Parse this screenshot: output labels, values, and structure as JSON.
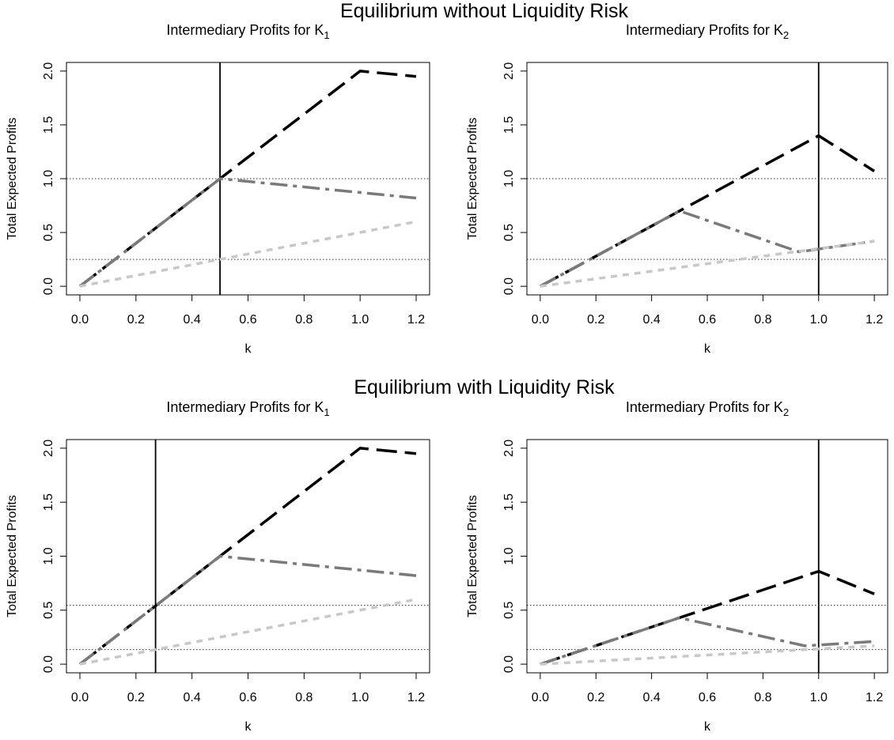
{
  "sections": [
    {
      "title": "Equilibrium without Liquidity Risk"
    },
    {
      "title": "Equilibrium with Liquidity Risk"
    }
  ],
  "series_styles": [
    {
      "color": "#000000",
      "dash": "long-dash",
      "width": 3.5
    },
    {
      "color": "#7a7a7a",
      "dash": "dash-dot",
      "width": 3.5
    },
    {
      "color": "#c8c8c8",
      "dash": "short-dash",
      "width": 3.5
    }
  ],
  "chart_data": [
    {
      "type": "line",
      "title": "Intermediary Profits for K",
      "title_subscript": "1",
      "xlabel": "k",
      "ylabel": "Total Expected Profits",
      "xlim": [
        0,
        1.2
      ],
      "ylim": [
        0,
        2.0
      ],
      "xticks": [
        "0.0",
        "0.2",
        "0.4",
        "0.6",
        "0.8",
        "1.0",
        "1.2"
      ],
      "yticks": [
        "0.0",
        "0.5",
        "1.0",
        "1.5",
        "2.0"
      ],
      "hlines": [
        1.0,
        0.25
      ],
      "vline": 0.5,
      "series": [
        {
          "x": [
            0,
            1.0,
            1.2
          ],
          "y": [
            0,
            2.0,
            1.95
          ]
        },
        {
          "x": [
            0,
            0.5,
            1.2
          ],
          "y": [
            0,
            1.0,
            0.82
          ]
        },
        {
          "x": [
            0,
            1.2
          ],
          "y": [
            0,
            0.6
          ]
        }
      ]
    },
    {
      "type": "line",
      "title": "Intermediary Profits for K",
      "title_subscript": "2",
      "xlabel": "k",
      "ylabel": "Total Expected Profits",
      "xlim": [
        0,
        1.2
      ],
      "ylim": [
        0,
        2.0
      ],
      "xticks": [
        "0.0",
        "0.2",
        "0.4",
        "0.6",
        "0.8",
        "1.0",
        "1.2"
      ],
      "yticks": [
        "0.0",
        "0.5",
        "1.0",
        "1.5",
        "2.0"
      ],
      "hlines": [
        1.0,
        0.25
      ],
      "vline": 1.0,
      "series": [
        {
          "x": [
            0,
            1.0,
            1.2
          ],
          "y": [
            0,
            1.4,
            1.07
          ]
        },
        {
          "x": [
            0,
            0.5,
            0.93,
            1.2
          ],
          "y": [
            0,
            0.7,
            0.32,
            0.42
          ]
        },
        {
          "x": [
            0,
            1.2
          ],
          "y": [
            0,
            0.42
          ]
        }
      ]
    },
    {
      "type": "line",
      "title": "Intermediary Profits for K",
      "title_subscript": "1",
      "xlabel": "k",
      "ylabel": "Total Expected Profits",
      "xlim": [
        0,
        1.2
      ],
      "ylim": [
        0,
        2.0
      ],
      "xticks": [
        "0.0",
        "0.2",
        "0.4",
        "0.6",
        "0.8",
        "1.0",
        "1.2"
      ],
      "yticks": [
        "0.0",
        "0.5",
        "1.0",
        "1.5",
        "2.0"
      ],
      "hlines": [
        0.545,
        0.135
      ],
      "vline": 0.27,
      "series": [
        {
          "x": [
            0,
            1.0,
            1.2
          ],
          "y": [
            0,
            2.0,
            1.95
          ]
        },
        {
          "x": [
            0,
            0.5,
            1.2
          ],
          "y": [
            0,
            1.0,
            0.82
          ]
        },
        {
          "x": [
            0,
            1.2
          ],
          "y": [
            0,
            0.6
          ]
        }
      ]
    },
    {
      "type": "line",
      "title": "Intermediary Profits for K",
      "title_subscript": "2",
      "xlabel": "k",
      "ylabel": "Total Expected Profits",
      "xlim": [
        0,
        1.2
      ],
      "ylim": [
        0,
        2.0
      ],
      "xticks": [
        "0.0",
        "0.2",
        "0.4",
        "0.6",
        "0.8",
        "1.0",
        "1.2"
      ],
      "yticks": [
        "0.0",
        "0.5",
        "1.0",
        "1.5",
        "2.0"
      ],
      "hlines": [
        0.545,
        0.135
      ],
      "vline": 1.0,
      "series": [
        {
          "x": [
            0,
            1.0,
            1.2
          ],
          "y": [
            0,
            0.86,
            0.65
          ]
        },
        {
          "x": [
            0,
            0.5,
            0.95,
            1.2
          ],
          "y": [
            0,
            0.43,
            0.17,
            0.21
          ]
        },
        {
          "x": [
            0,
            1.2
          ],
          "y": [
            0,
            0.17
          ]
        }
      ]
    }
  ]
}
